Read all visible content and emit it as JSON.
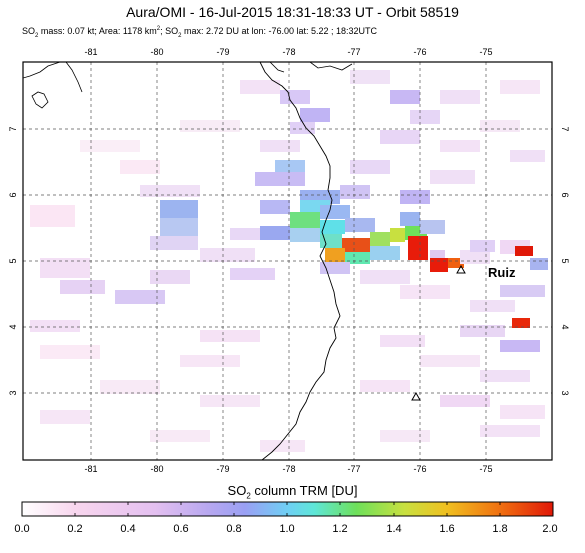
{
  "header": {
    "title": "Aura/OMI - 16-Jul-2015 18:31-18:33 UT - Orbit 58519",
    "mass_label": "SO",
    "mass_text": " mass: 0.07 kt; Area: 1178 km",
    "max_label": "; SO",
    "max_text": " max: 2.72 DU at lon: -76.00 lat: 5.22 ; 18:32UTC"
  },
  "map": {
    "lon_ticks": [
      "-81",
      "-80",
      "-79",
      "-78",
      "-77",
      "-76",
      "-75"
    ],
    "lat_ticks": [
      "7",
      "6",
      "5",
      "4",
      "3"
    ],
    "volcano_label": "Ruiz",
    "volcanoes": [
      {
        "name": "Ruiz",
        "lon": -75.32,
        "lat": 4.89
      },
      {
        "name": "",
        "lon": -76.04,
        "lat": 2.93
      }
    ]
  },
  "colorbar": {
    "title_prefix": "SO",
    "title_suffix": " column TRM [DU]",
    "ticks": [
      "0.0",
      "0.2",
      "0.4",
      "0.6",
      "0.8",
      "1.0",
      "1.2",
      "1.4",
      "1.6",
      "1.8",
      "2.0"
    ],
    "min": 0.0,
    "max": 2.0
  },
  "colors": {
    "land_line": "#000000",
    "grid": "#555555",
    "max_red": "#e8200a",
    "mid_green": "#6ee05a",
    "cyan": "#5fe0f0",
    "lavender": "#c8b6f0"
  }
}
